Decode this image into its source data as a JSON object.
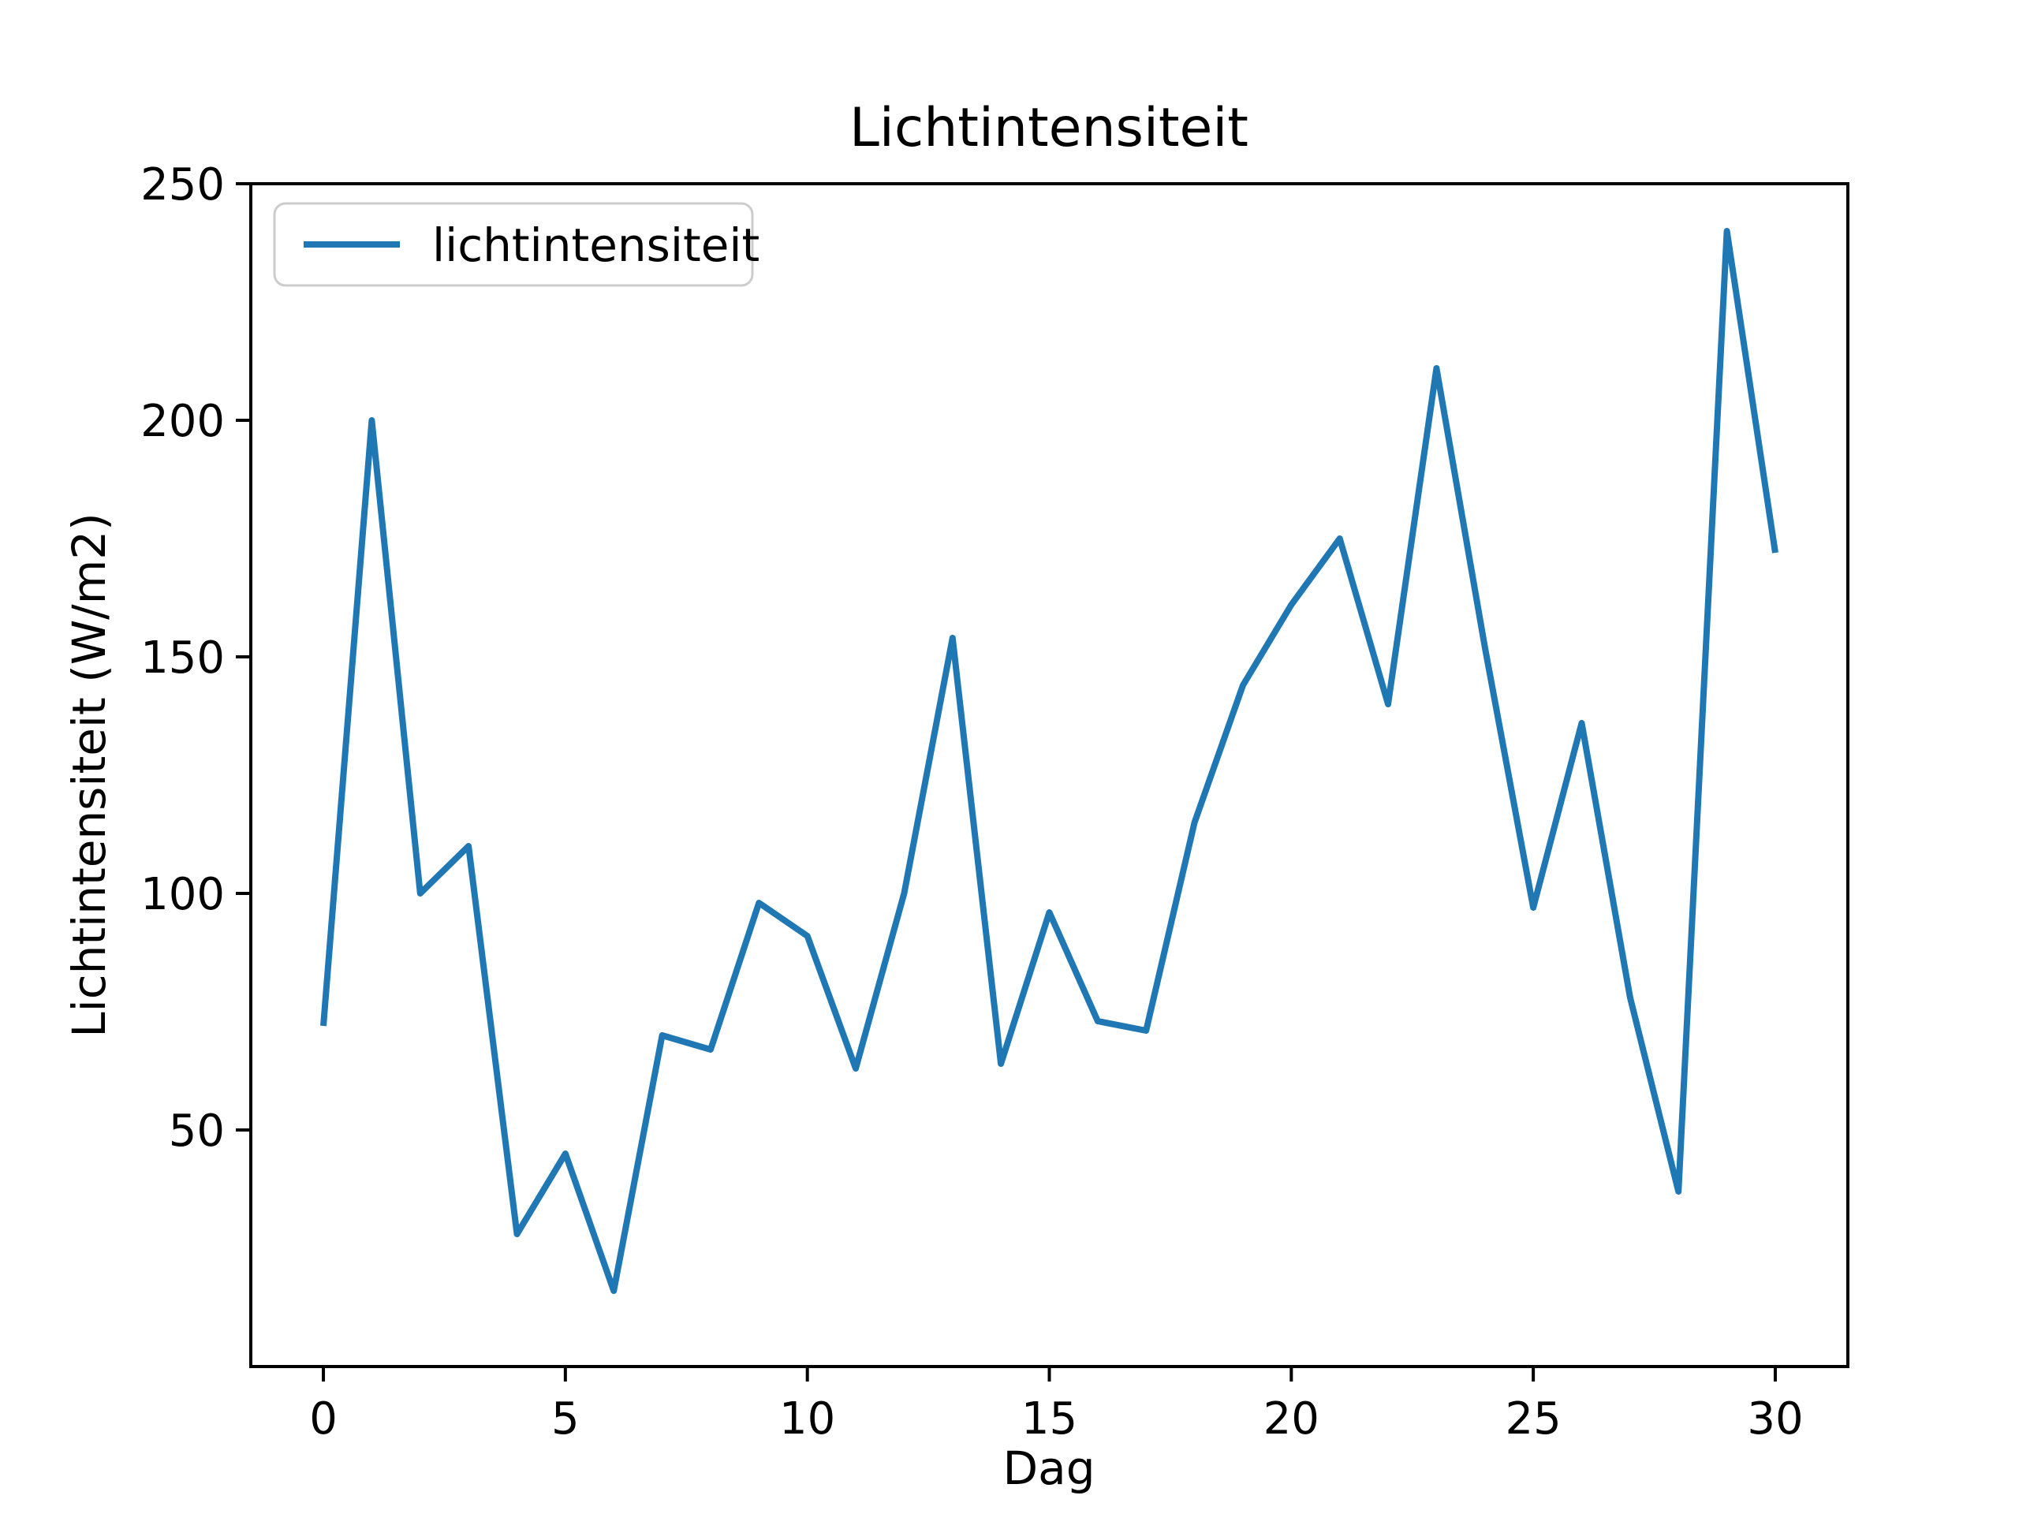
{
  "chart_data": {
    "type": "line",
    "title": "Lichtintensiteit",
    "xlabel": "Dag",
    "ylabel": "Lichtintensiteit (W/m2)",
    "x": [
      0,
      1,
      2,
      3,
      4,
      5,
      6,
      7,
      8,
      9,
      10,
      11,
      12,
      13,
      14,
      15,
      16,
      17,
      18,
      19,
      20,
      21,
      22,
      23,
      24,
      25,
      26,
      27,
      28,
      29,
      30
    ],
    "series": [
      {
        "name": "lichtintensiteit",
        "color": "#1f77b4",
        "values": [
          72,
          200,
          100,
          110,
          28,
          45,
          16,
          70,
          67,
          98,
          91,
          63,
          100,
          154,
          64,
          96,
          73,
          71,
          115,
          144,
          161,
          175,
          140,
          211,
          152,
          97,
          136,
          78,
          37,
          240,
          172
        ]
      }
    ],
    "xlim": [
      -1.5,
      31.5
    ],
    "ylim": [
      0,
      250
    ],
    "x_ticks": [
      0,
      5,
      10,
      15,
      20,
      25,
      30
    ],
    "y_ticks": [
      50,
      100,
      150,
      200,
      250
    ],
    "grid": false,
    "legend_position": "upper left"
  }
}
